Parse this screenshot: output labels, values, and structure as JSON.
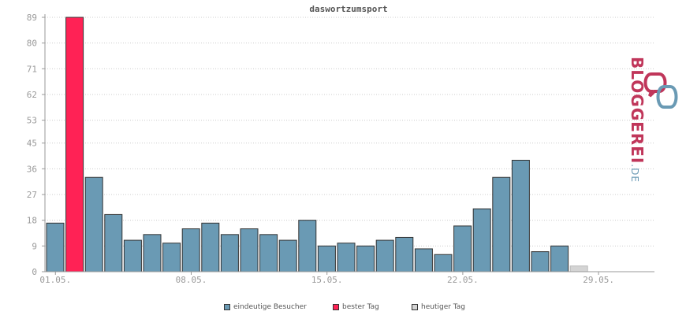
{
  "chart_data": {
    "type": "bar",
    "title": "daswortzumsport",
    "y_ticks": [
      "0",
      "9",
      "18",
      "27",
      "36",
      "45",
      "53",
      "62",
      "71",
      "80",
      "89"
    ],
    "ylim": [
      0,
      89
    ],
    "x_tick_labels": [
      {
        "label": "01.05.",
        "day": 1
      },
      {
        "label": "08.05.",
        "day": 8
      },
      {
        "label": "15.05.",
        "day": 15
      },
      {
        "label": "22.05.",
        "day": 22
      },
      {
        "label": "29.05.",
        "day": 29
      }
    ],
    "grid": true,
    "series": [
      {
        "name": "eindeutige Besucher",
        "days": [
          1,
          2,
          3,
          4,
          5,
          6,
          7,
          8,
          9,
          10,
          11,
          12,
          13,
          14,
          15,
          16,
          17,
          18,
          19,
          20,
          21,
          22,
          23,
          24,
          25,
          26,
          27,
          28,
          29,
          30,
          31
        ],
        "values": [
          17,
          89,
          33,
          20,
          11,
          13,
          10,
          15,
          17,
          13,
          15,
          13,
          11,
          18,
          9,
          10,
          9,
          11,
          12,
          8,
          6,
          16,
          22,
          33,
          39,
          7,
          9,
          2,
          0,
          0,
          0
        ]
      }
    ],
    "best_day": 2,
    "today": 28,
    "legend": [
      {
        "label": "eindeutige Besucher",
        "color": "#6a9ab4"
      },
      {
        "label": "bester Tag",
        "color": "#ff2255"
      },
      {
        "label": "heutiger Tag",
        "color": "#d4d4d4"
      }
    ]
  },
  "colors": {
    "normal": "#6a9ab4",
    "best": "#ff2255",
    "today": "#d4d4d4",
    "axis": "#999999",
    "grid": "#cccccc",
    "text": "#999999"
  },
  "logo": {
    "text_main": "BLOGGEREI",
    "text_suffix": ".DE"
  }
}
